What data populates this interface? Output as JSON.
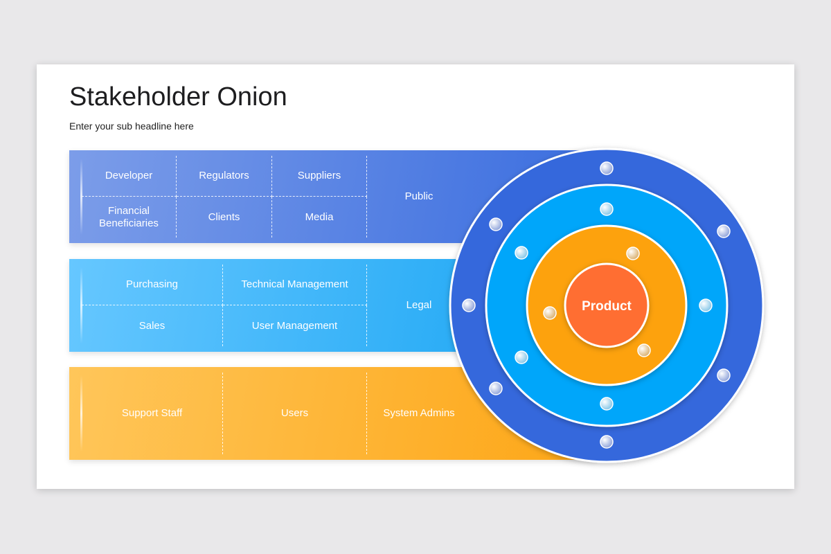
{
  "title": "Stakeholder Onion",
  "subtitle": "Enter your sub headline here",
  "bands": {
    "outer": {
      "color": "#4a7ae3",
      "cells": [
        "Developer",
        "Regulators",
        "Suppliers",
        "Financial Beneficiaries",
        "Clients",
        "Media"
      ],
      "side": "Public"
    },
    "middle": {
      "color": "#3ab4f8",
      "cells": [
        "Purchasing",
        "Technical Management",
        "Sales",
        "User Management"
      ],
      "side": "Legal"
    },
    "inner": {
      "color": "#feb534",
      "cells": [
        "Support Staff",
        "Users"
      ],
      "side": "System Admins"
    }
  },
  "onion": {
    "center_label": "Product",
    "colors": {
      "outer": "#3468dc",
      "middle": "#03a6fa",
      "inner": "#fda20b",
      "core": "#ff6e30"
    }
  }
}
